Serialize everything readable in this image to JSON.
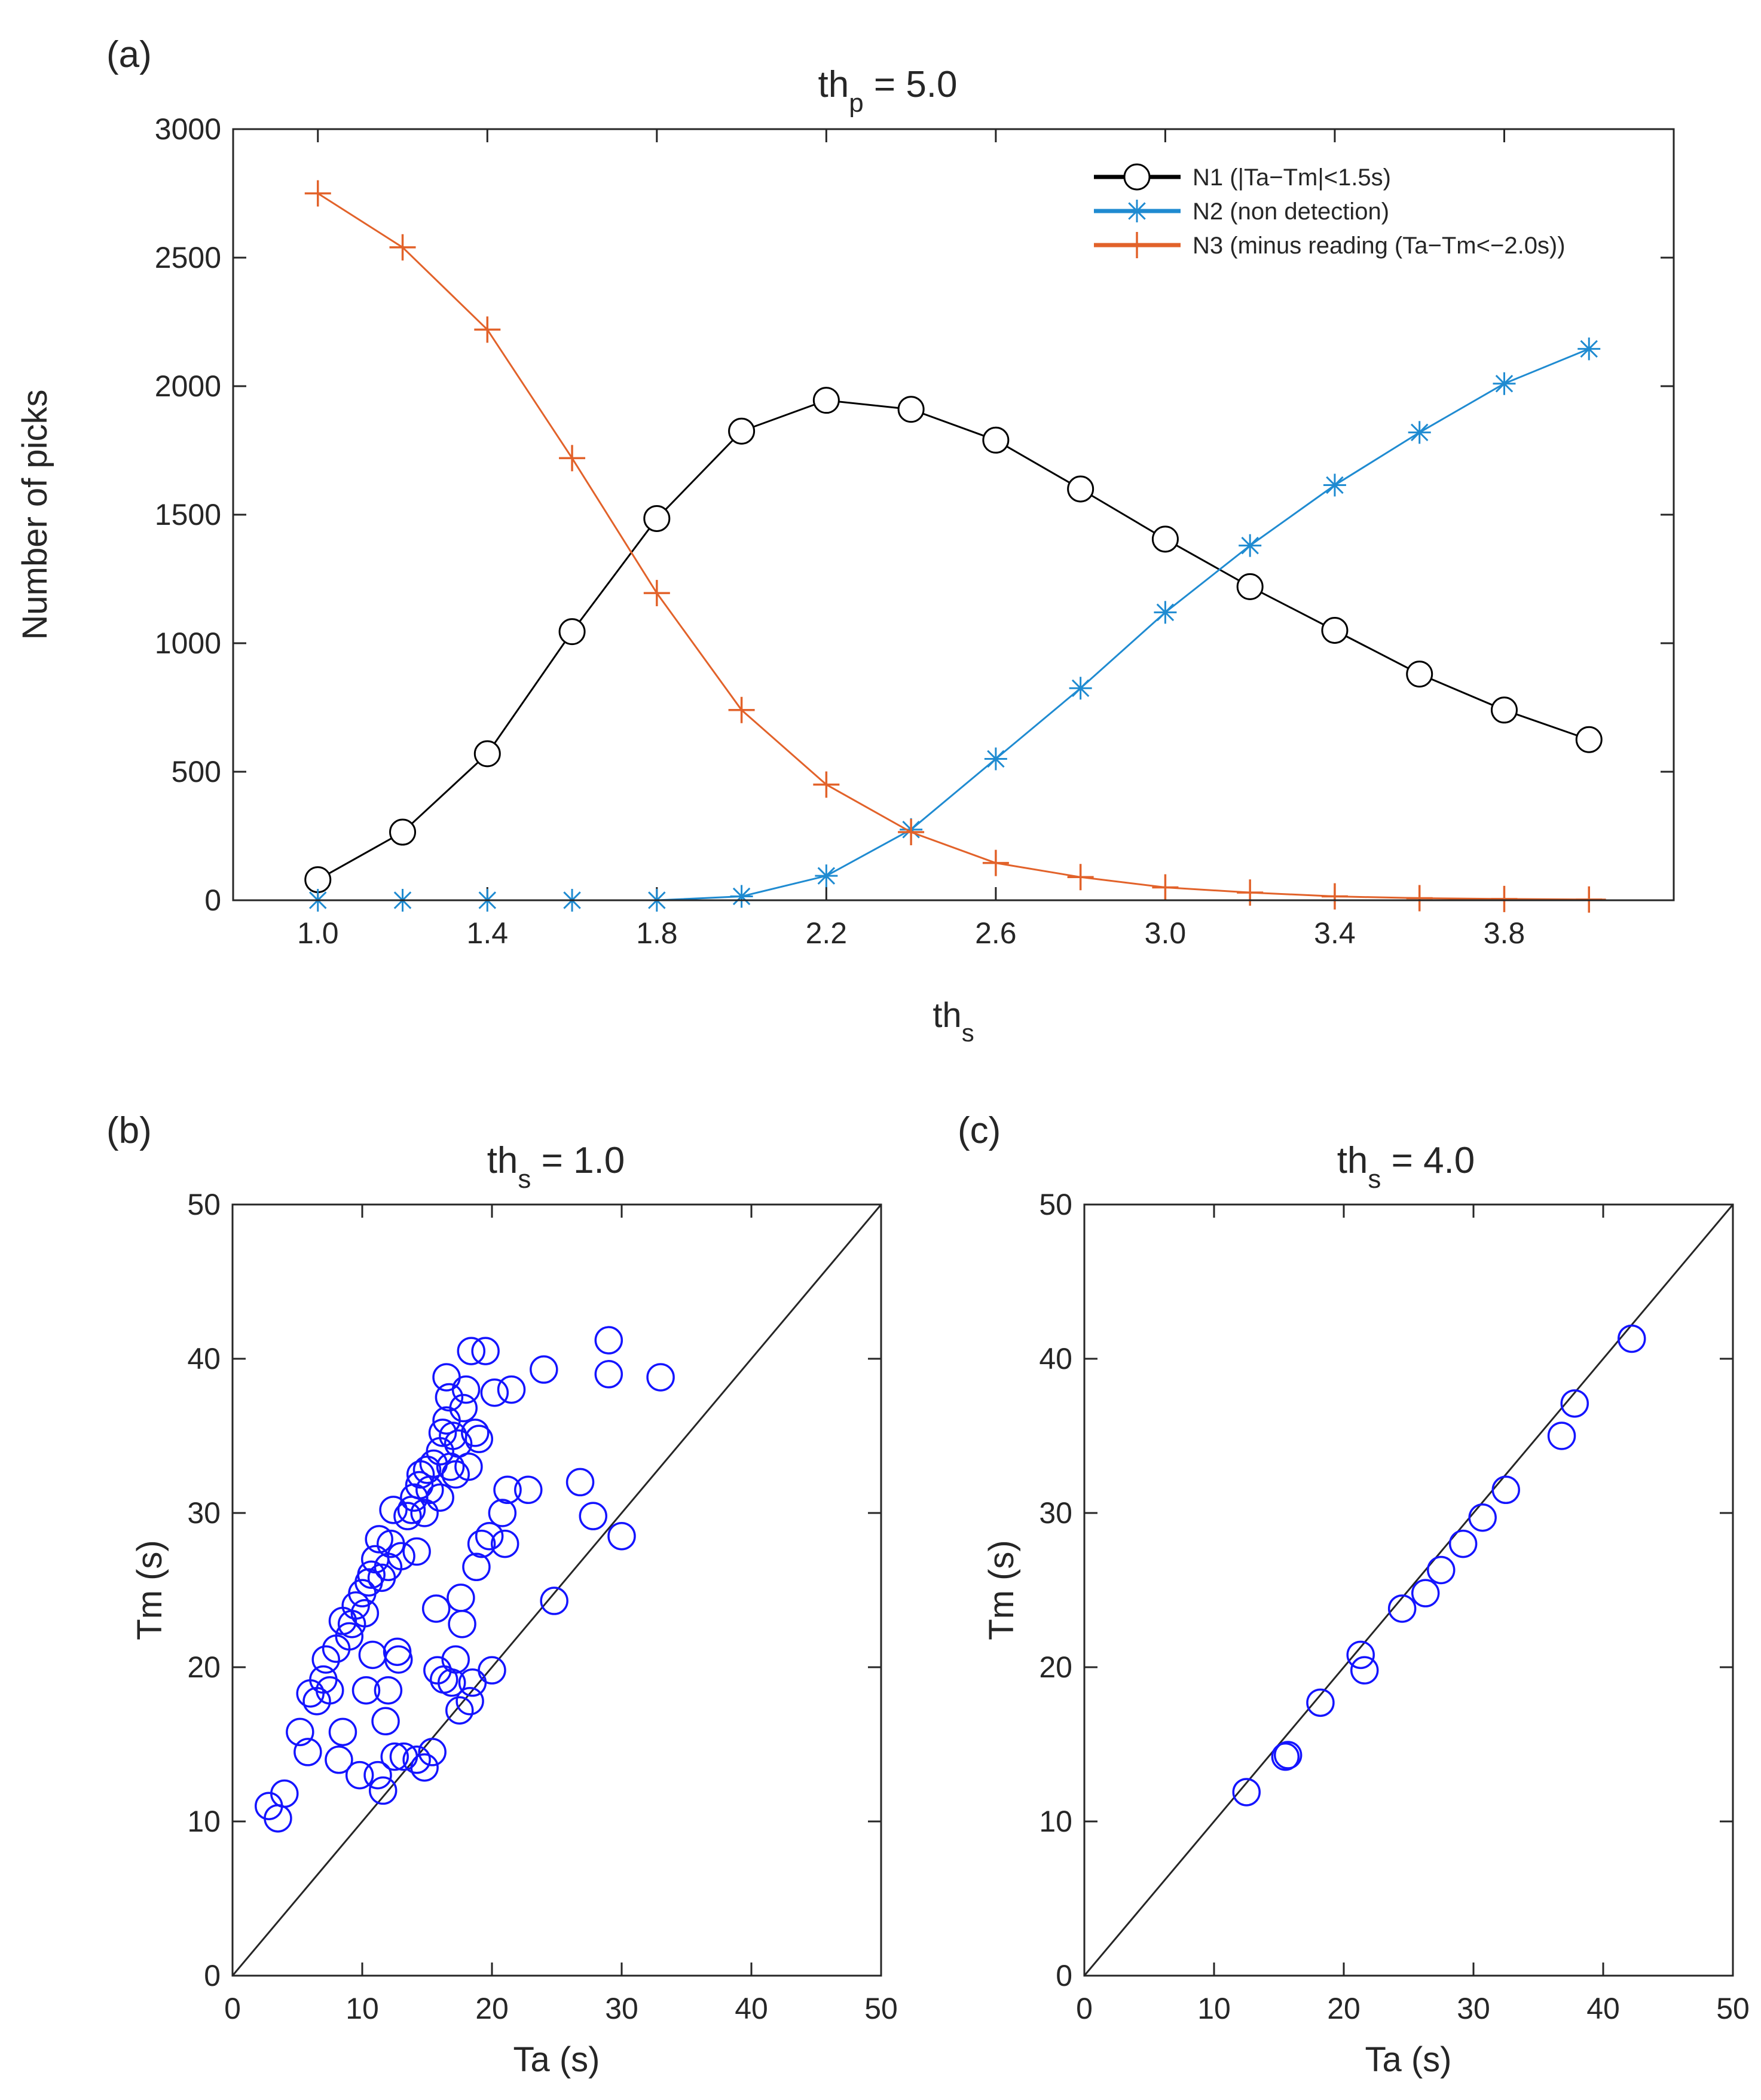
{
  "chart_data": [
    {
      "id": "a",
      "panel_label": "(a)",
      "type": "line",
      "title": "th",
      "title_sub": "p",
      "title_suffix": " = 5.0",
      "xlabel": "th",
      "xlabel_sub": "s",
      "ylabel": "Number of picks",
      "xlim": [
        0.8,
        4.2
      ],
      "ylim": [
        0,
        3000
      ],
      "xticks": [
        1.0,
        1.4,
        1.8,
        2.2,
        2.6,
        3.0,
        3.4,
        3.8
      ],
      "xtick_labels": [
        "1.0",
        "1.4",
        "1.8",
        "2.2",
        "2.6",
        "3.0",
        "3.4",
        "3.8"
      ],
      "yticks": [
        0,
        500,
        1000,
        1500,
        2000,
        2500,
        3000
      ],
      "ytick_labels": [
        "0",
        "500",
        "1000",
        "1500",
        "2000",
        "2500",
        "3000"
      ],
      "legend_position": "top-right",
      "x": [
        1.0,
        1.2,
        1.4,
        1.6,
        1.8,
        2.0,
        2.2,
        2.4,
        2.6,
        2.8,
        3.0,
        3.2,
        3.4,
        3.6,
        3.8,
        4.0
      ],
      "series": [
        {
          "name": "N1 (|Ta−Tm|<1.5s)",
          "color": "#000000",
          "marker": "circle",
          "values": [
            80,
            265,
            570,
            1045,
            1485,
            1825,
            1945,
            1910,
            1790,
            1600,
            1405,
            1220,
            1050,
            880,
            740,
            625
          ]
        },
        {
          "name": "N2 (non detection)",
          "color": "#1f8bd1",
          "marker": "asterisk",
          "values": [
            0,
            0,
            0,
            0,
            0,
            15,
            95,
            275,
            550,
            825,
            1120,
            1380,
            1615,
            1820,
            2010,
            2145
          ]
        },
        {
          "name": "N3 (minus reading (Ta−Tm<−2.0s))",
          "color": "#e2622a",
          "marker": "plus",
          "values": [
            2750,
            2540,
            2220,
            1720,
            1195,
            740,
            450,
            265,
            145,
            90,
            50,
            30,
            15,
            8,
            5,
            3
          ]
        }
      ]
    },
    {
      "id": "b",
      "panel_label": "(b)",
      "type": "scatter",
      "title": "th",
      "title_sub": "s",
      "title_suffix": " = 1.0",
      "xlabel": "Ta (s)",
      "ylabel": "Tm (s)",
      "xlim": [
        0,
        50
      ],
      "ylim": [
        0,
        50
      ],
      "xticks": [
        0,
        10,
        20,
        30,
        40,
        50
      ],
      "xtick_labels": [
        "0",
        "10",
        "20",
        "30",
        "40",
        "50"
      ],
      "yticks": [
        0,
        10,
        20,
        30,
        40,
        50
      ],
      "ytick_labels": [
        "0",
        "10",
        "20",
        "30",
        "40",
        "50"
      ],
      "marker_color": "#1414ff",
      "reference_line": [
        [
          0,
          0
        ],
        [
          50,
          50
        ]
      ],
      "points": [
        [
          2.8,
          11.0
        ],
        [
          3.5,
          10.2
        ],
        [
          4.0,
          11.8
        ],
        [
          5.2,
          15.8
        ],
        [
          5.8,
          14.5
        ],
        [
          6.0,
          18.3
        ],
        [
          6.5,
          17.8
        ],
        [
          7.0,
          19.2
        ],
        [
          7.2,
          20.5
        ],
        [
          7.5,
          18.5
        ],
        [
          8.0,
          21.2
        ],
        [
          8.2,
          14.0
        ],
        [
          8.5,
          15.8
        ],
        [
          8.5,
          23.0
        ],
        [
          9.0,
          22.0
        ],
        [
          9.2,
          22.8
        ],
        [
          9.5,
          24.0
        ],
        [
          9.8,
          13.0
        ],
        [
          10.0,
          24.8
        ],
        [
          10.2,
          23.5
        ],
        [
          10.3,
          18.5
        ],
        [
          10.5,
          25.5
        ],
        [
          10.7,
          26.0
        ],
        [
          10.8,
          20.8
        ],
        [
          11.0,
          27.0
        ],
        [
          11.2,
          13.0
        ],
        [
          11.3,
          28.3
        ],
        [
          11.5,
          25.8
        ],
        [
          11.6,
          12.0
        ],
        [
          11.8,
          16.5
        ],
        [
          12.0,
          18.5
        ],
        [
          12.0,
          26.5
        ],
        [
          12.2,
          28.0
        ],
        [
          12.4,
          30.2
        ],
        [
          12.5,
          14.2
        ],
        [
          12.7,
          21.0
        ],
        [
          12.8,
          20.5
        ],
        [
          13.0,
          27.2
        ],
        [
          13.2,
          14.2
        ],
        [
          13.5,
          29.8
        ],
        [
          13.8,
          30.2
        ],
        [
          14.0,
          31.0
        ],
        [
          14.2,
          27.5
        ],
        [
          14.2,
          14.0
        ],
        [
          14.4,
          31.8
        ],
        [
          14.5,
          32.5
        ],
        [
          14.8,
          13.5
        ],
        [
          14.8,
          30.0
        ],
        [
          15.0,
          32.8
        ],
        [
          15.2,
          31.5
        ],
        [
          15.4,
          14.5
        ],
        [
          15.5,
          33.2
        ],
        [
          15.7,
          23.8
        ],
        [
          15.8,
          19.8
        ],
        [
          16.0,
          34.0
        ],
        [
          16.0,
          31.0
        ],
        [
          16.2,
          35.2
        ],
        [
          16.3,
          19.2
        ],
        [
          16.5,
          36.0
        ],
        [
          16.5,
          38.8
        ],
        [
          16.7,
          37.5
        ],
        [
          16.8,
          33.0
        ],
        [
          16.9,
          19.0
        ],
        [
          17.0,
          35.0
        ],
        [
          17.2,
          32.5
        ],
        [
          17.2,
          20.5
        ],
        [
          17.4,
          34.5
        ],
        [
          17.5,
          17.2
        ],
        [
          17.6,
          24.5
        ],
        [
          17.7,
          22.8
        ],
        [
          17.8,
          36.8
        ],
        [
          18.0,
          38.0
        ],
        [
          18.2,
          33.0
        ],
        [
          18.3,
          17.8
        ],
        [
          18.4,
          40.5
        ],
        [
          18.5,
          19.0
        ],
        [
          18.7,
          35.2
        ],
        [
          18.8,
          26.5
        ],
        [
          19.0,
          34.8
        ],
        [
          19.2,
          28.0
        ],
        [
          19.5,
          40.5
        ],
        [
          19.8,
          28.5
        ],
        [
          20.0,
          19.8
        ],
        [
          20.2,
          37.8
        ],
        [
          20.8,
          30.0
        ],
        [
          21.0,
          28.0
        ],
        [
          21.2,
          31.5
        ],
        [
          21.5,
          38.0
        ],
        [
          22.8,
          31.5
        ],
        [
          24.0,
          39.3
        ],
        [
          24.8,
          24.3
        ],
        [
          26.8,
          32.0
        ],
        [
          27.8,
          29.8
        ],
        [
          29.0,
          41.2
        ],
        [
          29.0,
          39.0
        ],
        [
          30.0,
          28.5
        ],
        [
          33.0,
          38.8
        ]
      ]
    },
    {
      "id": "c",
      "panel_label": "(c)",
      "type": "scatter",
      "title": "th",
      "title_sub": "s",
      "title_suffix": " = 4.0",
      "xlabel": "Ta (s)",
      "ylabel": "Tm (s)",
      "xlim": [
        0,
        50
      ],
      "ylim": [
        0,
        50
      ],
      "xticks": [
        0,
        10,
        20,
        30,
        40,
        50
      ],
      "xtick_labels": [
        "0",
        "10",
        "20",
        "30",
        "40",
        "50"
      ],
      "yticks": [
        0,
        10,
        20,
        30,
        40,
        50
      ],
      "ytick_labels": [
        "0",
        "10",
        "20",
        "30",
        "40",
        "50"
      ],
      "marker_color": "#1414ff",
      "reference_line": [
        [
          0,
          0
        ],
        [
          50,
          50
        ]
      ],
      "points": [
        [
          12.5,
          11.9
        ],
        [
          15.5,
          14.2
        ],
        [
          15.7,
          14.3
        ],
        [
          18.2,
          17.7
        ],
        [
          21.3,
          20.8
        ],
        [
          21.6,
          19.8
        ],
        [
          24.5,
          23.8
        ],
        [
          26.3,
          24.8
        ],
        [
          27.5,
          26.3
        ],
        [
          29.2,
          28.0
        ],
        [
          30.7,
          29.7
        ],
        [
          32.5,
          31.5
        ],
        [
          36.8,
          35.0
        ],
        [
          37.8,
          37.1
        ],
        [
          42.2,
          41.3
        ]
      ]
    }
  ]
}
